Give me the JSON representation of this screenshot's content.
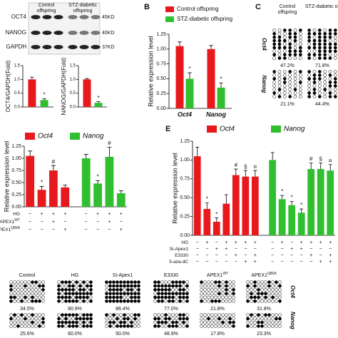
{
  "a": {
    "blot": {
      "groups": [
        "Control offspring",
        "STZ-diabetic offspring"
      ],
      "bands": [
        {
          "name": "OCT4",
          "size": "45KD"
        },
        {
          "name": "NANOG",
          "size": "40KD"
        },
        {
          "name": "GAPDH",
          "size": "37KD"
        }
      ]
    },
    "charts": [
      {
        "type": "bar",
        "ylabel": "OCT4/GAPDH(Fold)",
        "values": [
          1.0,
          0.25
        ],
        "errors": [
          0.08,
          0.05
        ],
        "markers": [
          null,
          "*"
        ],
        "colors": [
          "#e8191c",
          "#2fbf2f"
        ],
        "ylim": [
          0,
          1.5
        ],
        "yticks": [
          {
            "value": 0,
            "label": "0.0"
          },
          0.5,
          {
            "value": 1,
            "label": "1.0"
          },
          1.5
        ]
      },
      {
        "type": "bar",
        "ylabel": "NANOG/GAPDH(Fold)",
        "values": [
          1.0,
          0.15
        ],
        "errors": [
          0.03,
          0.04
        ],
        "markers": [
          null,
          "*"
        ],
        "colors": [
          "#e8191c",
          "#2fbf2f"
        ],
        "ylim": [
          0,
          1.5
        ],
        "yticks": [
          {
            "value": 0,
            "label": "0.0"
          },
          0.5,
          {
            "value": 1,
            "label": "1.0"
          },
          1.5
        ]
      }
    ]
  },
  "b": {
    "label": "B",
    "type": "bar",
    "ylabel": "Relative expression level",
    "categories": [
      "Oct4",
      "Nanog"
    ],
    "series": [
      {
        "name": "Control offspring",
        "color": "#e8191c",
        "values": [
          1.05,
          1.0
        ],
        "errors": [
          0.07,
          0.06
        ],
        "markers": [
          null,
          null
        ]
      },
      {
        "name": "STZ-diabetic offspring",
        "color": "#2fbf2f",
        "values": [
          0.5,
          0.35
        ],
        "errors": [
          0.1,
          0.08
        ],
        "markers": [
          "*",
          "*"
        ]
      }
    ],
    "ylim": [
      0,
      1.25
    ],
    "yticks": [
      {
        "value": 0,
        "label": "0.00"
      },
      0.25,
      {
        "value": 0.5,
        "label": "0.50"
      },
      0.75,
      {
        "value": 1,
        "label": "1.00"
      },
      1.25
    ]
  },
  "c": {
    "label": "C",
    "columns": [
      "Control offspring",
      "STZ-diabetic offspring"
    ],
    "rows": [
      {
        "gene": "Oct4",
        "percents": [
          "47.2%",
          "71.8%"
        ]
      },
      {
        "gene": "Nanog",
        "percents": [
          "21.1%",
          "44.4%"
        ]
      }
    ]
  },
  "d": {
    "type": "bar",
    "ylabel": "Relative expression level",
    "groups": [
      {
        "name": "Oct4",
        "color": "#e8191c",
        "values": [
          1.05,
          0.35,
          0.75,
          0.4
        ],
        "errors": [
          0.1,
          0.07,
          0.1,
          0.05
        ],
        "markers": [
          null,
          "*",
          "#",
          null
        ]
      },
      {
        "name": "Nanog",
        "color": "#2fbf2f",
        "values": [
          1.0,
          0.48,
          1.03,
          0.28
        ],
        "errors": [
          0.08,
          0.06,
          0.2,
          0.05
        ],
        "markers": [
          null,
          "*",
          "#",
          null
        ]
      }
    ],
    "conditions": [
      {
        "label": "HG",
        "signs": [
          "−",
          "+",
          "+",
          "+",
          "−",
          "+",
          "+",
          "+"
        ]
      },
      {
        "label": "APEX1",
        "sup": "WT",
        "signs": [
          "−",
          "−",
          "+",
          "−",
          "−",
          "−",
          "+",
          "−"
        ]
      },
      {
        "label": "APEX1",
        "sup": "Q85A",
        "signs": [
          "−",
          "−",
          "−",
          "+",
          "−",
          "−",
          "−",
          "+"
        ]
      }
    ],
    "ylim": [
      0,
      1.25
    ],
    "yticks": [
      {
        "value": 0,
        "label": "0.00"
      },
      0.25,
      {
        "value": 0.5,
        "label": "0.50"
      },
      0.75,
      {
        "value": 1,
        "label": "1.00"
      },
      1.25
    ]
  },
  "e": {
    "label": "E",
    "type": "bar",
    "ylabel": "Relative expression level",
    "groups": [
      {
        "name": "Oct4",
        "color": "#e8191c",
        "values": [
          1.05,
          0.35,
          0.18,
          0.42,
          0.8,
          0.78,
          0.78
        ],
        "errors": [
          0.12,
          0.08,
          0.05,
          0.12,
          0.08,
          0.08,
          0.08
        ],
        "markers": [
          null,
          "*",
          "*",
          null,
          "#",
          "§",
          "¤"
        ]
      },
      {
        "name": "Nanog",
        "color": "#2fbf2f",
        "values": [
          1.0,
          0.48,
          0.4,
          0.3,
          0.88,
          0.88,
          0.86
        ],
        "errors": [
          0.1,
          0.05,
          0.05,
          0.05,
          0.08,
          0.08,
          0.08
        ],
        "markers": [
          null,
          "*",
          "*",
          "*",
          "#",
          "§",
          "¤"
        ]
      }
    ],
    "conditions": [
      {
        "label": "HG",
        "signs": [
          "−",
          "+",
          "−",
          "+",
          "+",
          "+",
          "+",
          "−",
          "+",
          "−",
          "+",
          "+",
          "+",
          "+"
        ]
      },
      {
        "label": "Si-Apex1",
        "signs": [
          "−",
          "−",
          "+",
          "+",
          "−",
          "−",
          "−",
          "−",
          "−",
          "+",
          "+",
          "−",
          "−",
          "−"
        ]
      },
      {
        "label": "E3330",
        "signs": [
          "−",
          "−",
          "−",
          "−",
          "+",
          "−",
          "+",
          "−",
          "−",
          "−",
          "−",
          "+",
          "−",
          "+"
        ]
      },
      {
        "label": "5-aza-dC",
        "signs": [
          "−",
          "−",
          "−",
          "−",
          "−",
          "+",
          "+",
          "−",
          "−",
          "−",
          "−",
          "−",
          "+",
          "+"
        ]
      }
    ],
    "ylim": [
      0,
      1.25
    ],
    "yticks": [
      {
        "value": 0,
        "label": "0.00"
      },
      0.25,
      {
        "value": 0.5,
        "label": "0.50"
      },
      0.75,
      {
        "value": 1,
        "label": "1.00"
      },
      1.25
    ]
  },
  "f": {
    "columns": [
      {
        "label": "Control"
      },
      {
        "label": "HG"
      },
      {
        "label": "Si-Apex1"
      },
      {
        "label": "E3330"
      },
      {
        "label": "APEX1",
        "sup": "WT"
      },
      {
        "label": "APEX1",
        "sup": "Q85A"
      }
    ],
    "rows": [
      {
        "gene": "Oct4",
        "percents": [
          "34.5%",
          "80.9%",
          "86.4%",
          "77.0%",
          "21.8%",
          "31.8%"
        ]
      },
      {
        "gene": "Nanog",
        "percents": [
          "25.6%",
          "60.0%",
          "50.0%",
          "48.9%",
          "17.8%",
          "23.3%"
        ]
      }
    ]
  }
}
